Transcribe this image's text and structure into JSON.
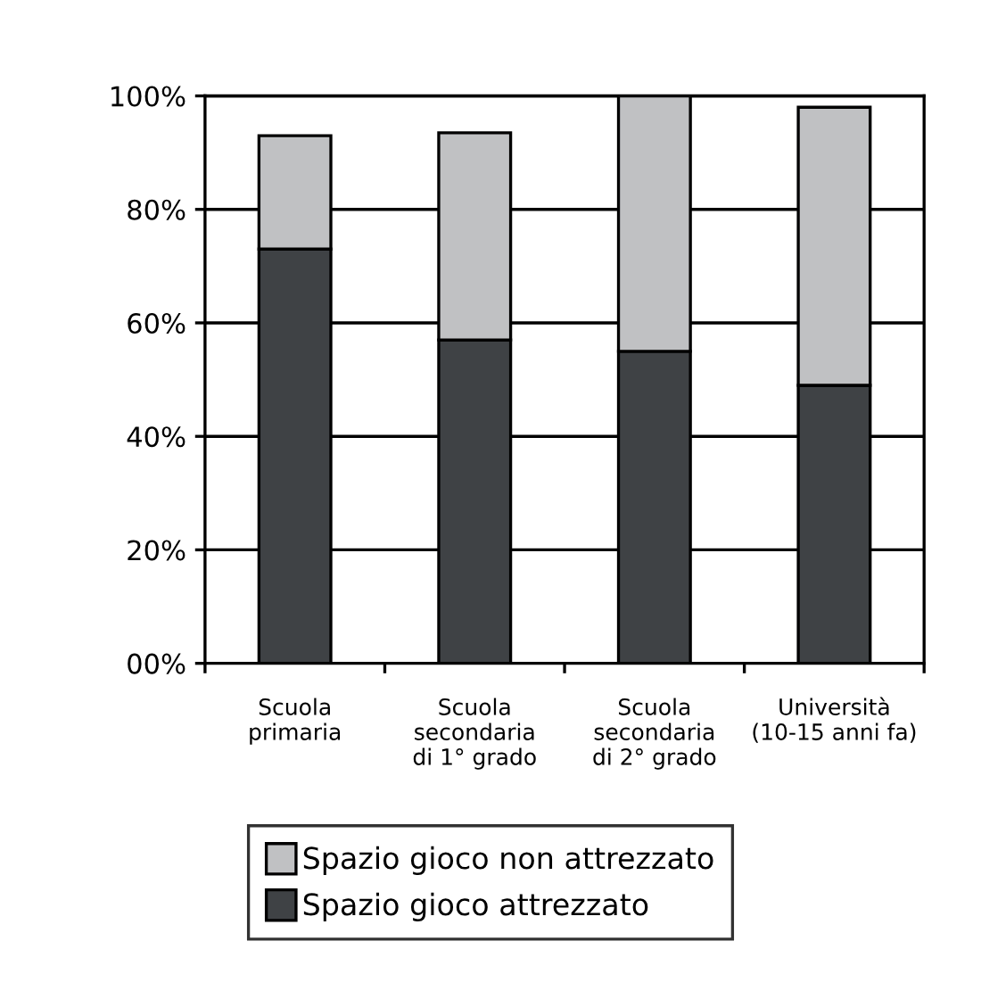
{
  "chart_data": {
    "type": "bar",
    "stacked": true,
    "categories": [
      "Scuola\nprimaria",
      "Scuola\nsecondaria\ndi 1° grado",
      "Scuola\nsecondaria\ndi 2° grado",
      "Università\n(10-15 anni fa)"
    ],
    "series": [
      {
        "name": "Spazio gioco attrezzato",
        "color": "#3f4245",
        "values": [
          73,
          57,
          55,
          49
        ]
      },
      {
        "name": "Spazio gioco non attrezzato",
        "color": "#c0c1c3",
        "values": [
          20,
          36.5,
          45,
          49
        ]
      }
    ],
    "ylim": [
      0,
      100
    ],
    "yticks": [
      {
        "value": 0,
        "label": "00%"
      },
      {
        "value": 20,
        "label": "20%"
      },
      {
        "value": 40,
        "label": "40%"
      },
      {
        "value": 60,
        "label": "60%"
      },
      {
        "value": 80,
        "label": "80%"
      },
      {
        "value": 100,
        "label": "100%"
      }
    ],
    "grid": "y",
    "legend": "bottom"
  }
}
